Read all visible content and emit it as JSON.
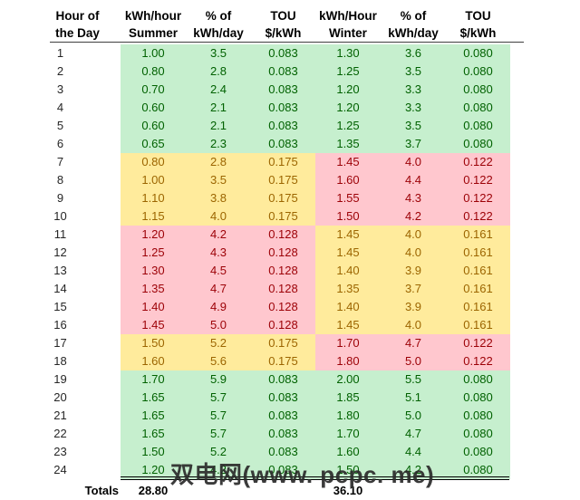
{
  "watermark": "双电网(www. pcpc. me)",
  "colors": {
    "green_bg": "#C6EFCE",
    "green_text": "#006100",
    "yellow_bg": "#FFEB9C",
    "yellow_text": "#9C6500",
    "pink_bg": "#FFC7CE",
    "pink_text": "#9C0006",
    "header_text": "#000000",
    "rule_line": "#3F3F3F"
  },
  "chart_data": {
    "type": "table",
    "columns": [
      {
        "line1": "Hour of",
        "line2": "the Day"
      },
      {
        "line1": "kWh/hour",
        "line2": "Summer"
      },
      {
        "line1": "% of",
        "line2": "kWh/day"
      },
      {
        "line1": "TOU",
        "line2": "$/kWh"
      },
      {
        "line1": "kWh/Hour",
        "line2": "Winter"
      },
      {
        "line1": "% of",
        "line2": "kWh/day"
      },
      {
        "line1": "TOU",
        "line2": "$/kWh"
      }
    ],
    "rows": [
      {
        "hour": "1",
        "values": [
          "1.00",
          "3.5",
          "0.083",
          "1.30",
          "3.6",
          "0.080"
        ],
        "summer_style": "green",
        "winter_style": "green"
      },
      {
        "hour": "2",
        "values": [
          "0.80",
          "2.8",
          "0.083",
          "1.25",
          "3.5",
          "0.080"
        ],
        "summer_style": "green",
        "winter_style": "green"
      },
      {
        "hour": "3",
        "values": [
          "0.70",
          "2.4",
          "0.083",
          "1.20",
          "3.3",
          "0.080"
        ],
        "summer_style": "green",
        "winter_style": "green"
      },
      {
        "hour": "4",
        "values": [
          "0.60",
          "2.1",
          "0.083",
          "1.20",
          "3.3",
          "0.080"
        ],
        "summer_style": "green",
        "winter_style": "green"
      },
      {
        "hour": "5",
        "values": [
          "0.60",
          "2.1",
          "0.083",
          "1.25",
          "3.5",
          "0.080"
        ],
        "summer_style": "green",
        "winter_style": "green"
      },
      {
        "hour": "6",
        "values": [
          "0.65",
          "2.3",
          "0.083",
          "1.35",
          "3.7",
          "0.080"
        ],
        "summer_style": "green",
        "winter_style": "green"
      },
      {
        "hour": "7",
        "values": [
          "0.80",
          "2.8",
          "0.175",
          "1.45",
          "4.0",
          "0.122"
        ],
        "summer_style": "yellow",
        "winter_style": "pink"
      },
      {
        "hour": "8",
        "values": [
          "1.00",
          "3.5",
          "0.175",
          "1.60",
          "4.4",
          "0.122"
        ],
        "summer_style": "yellow",
        "winter_style": "pink"
      },
      {
        "hour": "9",
        "values": [
          "1.10",
          "3.8",
          "0.175",
          "1.55",
          "4.3",
          "0.122"
        ],
        "summer_style": "yellow",
        "winter_style": "pink"
      },
      {
        "hour": "10",
        "values": [
          "1.15",
          "4.0",
          "0.175",
          "1.50",
          "4.2",
          "0.122"
        ],
        "summer_style": "yellow",
        "winter_style": "pink"
      },
      {
        "hour": "11",
        "values": [
          "1.20",
          "4.2",
          "0.128",
          "1.45",
          "4.0",
          "0.161"
        ],
        "summer_style": "pink",
        "winter_style": "yellow"
      },
      {
        "hour": "12",
        "values": [
          "1.25",
          "4.3",
          "0.128",
          "1.45",
          "4.0",
          "0.161"
        ],
        "summer_style": "pink",
        "winter_style": "yellow"
      },
      {
        "hour": "13",
        "values": [
          "1.30",
          "4.5",
          "0.128",
          "1.40",
          "3.9",
          "0.161"
        ],
        "summer_style": "pink",
        "winter_style": "yellow"
      },
      {
        "hour": "14",
        "values": [
          "1.35",
          "4.7",
          "0.128",
          "1.35",
          "3.7",
          "0.161"
        ],
        "summer_style": "pink",
        "winter_style": "yellow"
      },
      {
        "hour": "15",
        "values": [
          "1.40",
          "4.9",
          "0.128",
          "1.40",
          "3.9",
          "0.161"
        ],
        "summer_style": "pink",
        "winter_style": "yellow"
      },
      {
        "hour": "16",
        "values": [
          "1.45",
          "5.0",
          "0.128",
          "1.45",
          "4.0",
          "0.161"
        ],
        "summer_style": "pink",
        "winter_style": "yellow"
      },
      {
        "hour": "17",
        "values": [
          "1.50",
          "5.2",
          "0.175",
          "1.70",
          "4.7",
          "0.122"
        ],
        "summer_style": "yellow",
        "winter_style": "pink"
      },
      {
        "hour": "18",
        "values": [
          "1.60",
          "5.6",
          "0.175",
          "1.80",
          "5.0",
          "0.122"
        ],
        "summer_style": "yellow",
        "winter_style": "pink"
      },
      {
        "hour": "19",
        "values": [
          "1.70",
          "5.9",
          "0.083",
          "2.00",
          "5.5",
          "0.080"
        ],
        "summer_style": "green",
        "winter_style": "green"
      },
      {
        "hour": "20",
        "values": [
          "1.65",
          "5.7",
          "0.083",
          "1.85",
          "5.1",
          "0.080"
        ],
        "summer_style": "green",
        "winter_style": "green"
      },
      {
        "hour": "21",
        "values": [
          "1.65",
          "5.7",
          "0.083",
          "1.80",
          "5.0",
          "0.080"
        ],
        "summer_style": "green",
        "winter_style": "green"
      },
      {
        "hour": "22",
        "values": [
          "1.65",
          "5.7",
          "0.083",
          "1.70",
          "4.7",
          "0.080"
        ],
        "summer_style": "green",
        "winter_style": "green"
      },
      {
        "hour": "23",
        "values": [
          "1.50",
          "5.2",
          "0.083",
          "1.60",
          "4.4",
          "0.080"
        ],
        "summer_style": "green",
        "winter_style": "green"
      },
      {
        "hour": "24",
        "values": [
          "1.20",
          "4.2",
          "0.083",
          "1.50",
          "4.2",
          "0.080"
        ],
        "summer_style": "green",
        "winter_style": "green"
      }
    ],
    "totals": {
      "label": "Totals",
      "summer_total": "28.80",
      "winter_total": "36.10"
    }
  }
}
